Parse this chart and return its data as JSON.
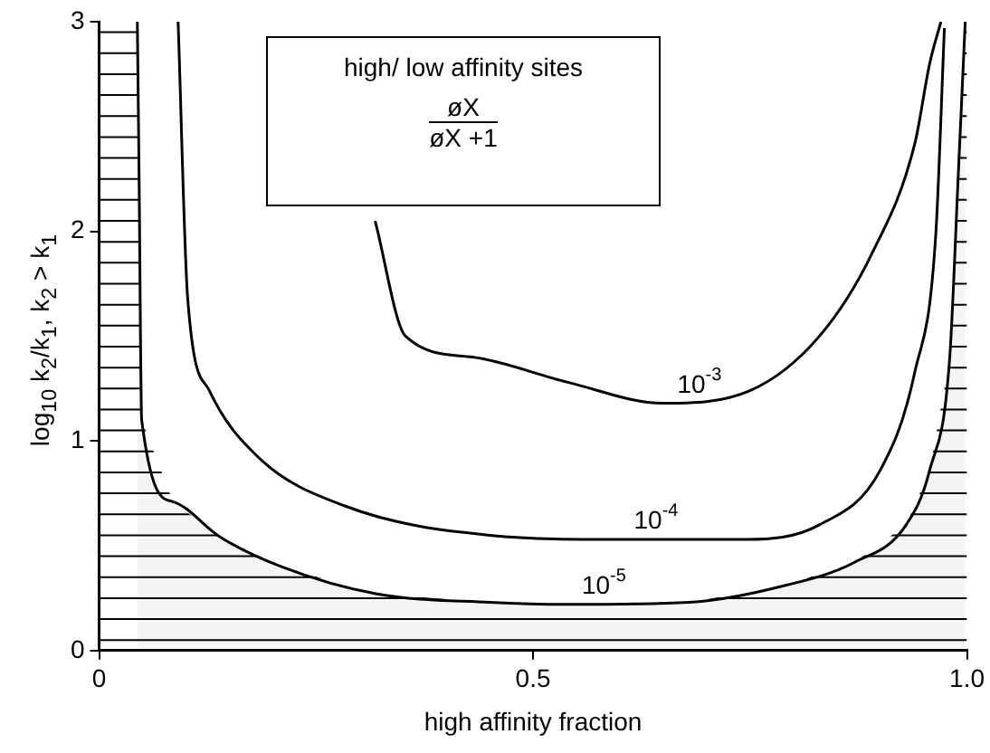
{
  "chart_data": {
    "type": "line",
    "xlabel": "high affinity fraction",
    "ylabel": "log$_{10}$ k$_{2}$/k$_{1}$, k$_{2}$ > k$_{1}$",
    "xlim": [
      0,
      1
    ],
    "xticks": [
      0,
      0.5,
      {
        "value": 1,
        "label": "1.0"
      }
    ],
    "ylim": [
      0,
      3
    ],
    "yticks": [
      0,
      1,
      2,
      3
    ],
    "grid": false,
    "legend": false,
    "marker": "none",
    "line_style": "solid",
    "series": [
      {
        "name": "10$^{-3}$",
        "color": "#000000",
        "x": [
          0.318,
          0.353,
          0.43,
          0.54,
          0.65,
          0.75,
          0.83,
          0.89,
          0.94,
          0.957,
          0.97
        ],
        "values": [
          2.05,
          1.5,
          1.4,
          1.28,
          1.18,
          1.24,
          1.5,
          1.89,
          2.42,
          2.8,
          3.0
        ]
      },
      {
        "name": "10$^{-4}$",
        "color": "#000000",
        "x": [
          0.091,
          0.102,
          0.127,
          0.184,
          0.283,
          0.45,
          0.6,
          0.745,
          0.83,
          0.9,
          0.94,
          0.964,
          0.974
        ],
        "values": [
          3.0,
          1.68,
          1.24,
          0.92,
          0.69,
          0.55,
          0.53,
          0.53,
          0.6,
          0.86,
          1.33,
          1.98,
          2.97
        ]
      },
      {
        "name": "10$^{-5}$",
        "type": "area",
        "color": "#000000",
        "x": [
          0.044,
          0.046,
          0.049,
          0.085,
          0.14,
          0.21,
          0.32,
          0.45,
          0.54,
          0.68,
          0.79,
          0.87,
          0.93,
          0.957,
          0.98,
          0.99,
          0.998
        ],
        "values": [
          3.0,
          2.27,
          1.1,
          0.71,
          0.54,
          0.4,
          0.27,
          0.23,
          0.22,
          0.23,
          0.31,
          0.42,
          0.6,
          0.86,
          1.39,
          2.27,
          3.0
        ]
      }
    ],
    "annotations": [
      "high/ low affinity sites",
      "øX",
      "øX +1"
    ]
  }
}
